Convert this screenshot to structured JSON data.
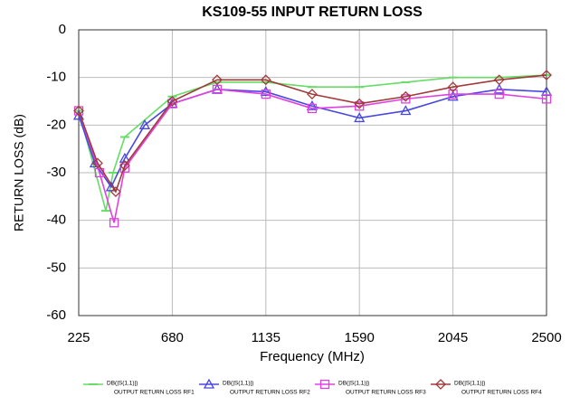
{
  "chart_data": {
    "type": "line",
    "title": "KS109-55 INPUT RETURN LOSS",
    "xlabel": "Frequency (MHz)",
    "ylabel": "RETURN LOSS (dB)",
    "xlim": [
      225,
      2500
    ],
    "xticks": [
      225,
      680,
      1135,
      1590,
      2045,
      2500
    ],
    "ylim": [
      -60,
      0
    ],
    "yticks": [
      -60,
      -50,
      -40,
      -30,
      -20,
      -10,
      0
    ],
    "grid": true,
    "series": [
      {
        "name": "DB(|S(1,1)|)",
        "subname": "OUTPUT RETURN LOSS RF1",
        "color": "#66dd66",
        "marker": "dash",
        "x": [
          225,
          357,
          392,
          449,
          680,
          898,
          1135,
          1360,
          1590,
          1815,
          2045,
          2270,
          2500
        ],
        "values": [
          -17,
          -38,
          -30,
          -22.5,
          -14,
          -11,
          -11,
          -12,
          -12,
          -11,
          -10,
          -10,
          -9.5
        ]
      },
      {
        "name": "DB(|S(1,1)|)",
        "subname": "OUTPUT RETURN LOSS RF2",
        "color": "#4848e0",
        "marker": "triangle",
        "x": [
          225,
          304,
          383,
          449,
          546,
          680,
          898,
          1135,
          1360,
          1590,
          1815,
          2045,
          2270,
          2500
        ],
        "values": [
          -18,
          -28,
          -33,
          -27,
          -20,
          -15.5,
          -12.5,
          -13,
          -16,
          -18.5,
          -17,
          -14,
          -12.5,
          -13
        ]
      },
      {
        "name": "DB(|S(1,1)|)",
        "subname": "OUTPUT RETURN LOSS RF3",
        "color": "#e040e0",
        "marker": "square",
        "x": [
          225,
          326,
          397,
          449,
          680,
          898,
          1135,
          1360,
          1590,
          1815,
          2045,
          2270,
          2500
        ],
        "values": [
          -17,
          -30,
          -40.5,
          -29,
          -15.5,
          -12.5,
          -13.5,
          -16.5,
          -16,
          -14.5,
          -13.5,
          -13.5,
          -14.5
        ]
      },
      {
        "name": "DB(|S(1,1)|)",
        "subname": "OUTPUT RETURN LOSS RF4",
        "color": "#a03a3a",
        "marker": "diamond",
        "x": [
          225,
          317,
          405,
          449,
          680,
          898,
          1135,
          1360,
          1590,
          1815,
          2045,
          2270,
          2500
        ],
        "values": [
          -17,
          -28,
          -34,
          -28.5,
          -15,
          -10.5,
          -10.5,
          -13.5,
          -15.5,
          -14,
          -12,
          -10.5,
          -9.5
        ]
      }
    ]
  }
}
